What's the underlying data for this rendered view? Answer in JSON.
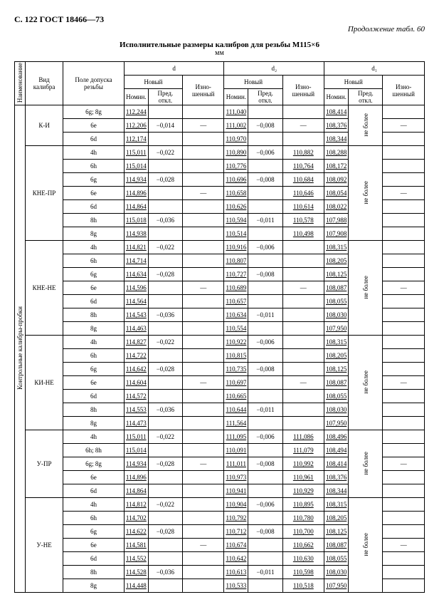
{
  "page_header": "С. 122 ГОСТ 18466—73",
  "continuation": "Продолжение табл. 60",
  "title": "Исполнительные размеры калибров для резьбы М115×6",
  "unit": "мм",
  "headers": {
    "naim": "Наименование",
    "vid": "Вид калибра",
    "pole": "Поле допуска резьбы",
    "d": "d",
    "d2": "d₂",
    "d1": "d₁",
    "novyj": "Новый",
    "izno": "Изно-шенный",
    "nomin": "Номин.",
    "pred": "Пред. откл."
  },
  "side_label": "Контрольные калибры-пробки",
  "ne_bolee": "не более",
  "groups": [
    {
      "vid": "К-И",
      "rows": [
        {
          "pole": "6g; 8g",
          "d_n": "112,244",
          "d_p": "",
          "d_i": "",
          "d2_n": "111,040",
          "d2_p": "",
          "d2_i": "",
          "d1_n": "108,414",
          "d1_p": "",
          "d1_i": ""
        },
        {
          "pole": "6e",
          "d_n": "112,206",
          "d_p": "−0,014",
          "d_i": "—",
          "d2_n": "111,002",
          "d2_p": "−0,008",
          "d2_i": "—",
          "d1_n": "108,376",
          "d1_p": "—",
          "d1_i": "—"
        },
        {
          "pole": "6d",
          "d_n": "112,174",
          "d_p": "",
          "d_i": "",
          "d2_n": "110,970",
          "d2_p": "",
          "d2_i": "",
          "d1_n": "108,344",
          "d1_p": "",
          "d1_i": ""
        }
      ]
    },
    {
      "vid": "КНЕ-ПР",
      "rows": [
        {
          "pole": "4h",
          "d_n": "115,011",
          "d_p": "−0,022",
          "d_i": "",
          "d2_n": "110,890",
          "d2_p": "−0,006",
          "d2_i": "110,882",
          "d1_n": "108,288",
          "d1_p": "",
          "d1_i": ""
        },
        {
          "pole": "6h",
          "d_n": "115,014",
          "d_p": "",
          "d_i": "",
          "d2_n": "110,776",
          "d2_p": "",
          "d2_i": "110,764",
          "d1_n": "108,172",
          "d1_p": "",
          "d1_i": ""
        },
        {
          "pole": "6g",
          "d_n": "114,934",
          "d_p": "−0,028",
          "d_i": "",
          "d2_n": "110,696",
          "d2_p": "−0,008",
          "d2_i": "110,684",
          "d1_n": "108,092",
          "d1_p": "",
          "d1_i": ""
        },
        {
          "pole": "6e",
          "d_n": "114,896",
          "d_p": "",
          "d_i": "—",
          "d2_n": "110,658",
          "d2_p": "",
          "d2_i": "110,646",
          "d1_n": "108,054",
          "d1_p": "—",
          "d1_i": "—"
        },
        {
          "pole": "6d",
          "d_n": "114,864",
          "d_p": "",
          "d_i": "",
          "d2_n": "110,626",
          "d2_p": "",
          "d2_i": "110,614",
          "d1_n": "108,022",
          "d1_p": "",
          "d1_i": ""
        },
        {
          "pole": "8h",
          "d_n": "115,018",
          "d_p": "−0,036",
          "d_i": "",
          "d2_n": "110,594",
          "d2_p": "−0,011",
          "d2_i": "110,578",
          "d1_n": "107,988",
          "d1_p": "",
          "d1_i": ""
        },
        {
          "pole": "8g",
          "d_n": "114,938",
          "d_p": "",
          "d_i": "",
          "d2_n": "110,514",
          "d2_p": "",
          "d2_i": "110,498",
          "d1_n": "107,908",
          "d1_p": "",
          "d1_i": ""
        }
      ]
    },
    {
      "vid": "КНЕ-НЕ",
      "rows": [
        {
          "pole": "4h",
          "d_n": "114,821",
          "d_p": "−0,022",
          "d_i": "",
          "d2_n": "110,916",
          "d2_p": "−0,006",
          "d2_i": "",
          "d1_n": "108,315",
          "d1_p": "",
          "d1_i": ""
        },
        {
          "pole": "6h",
          "d_n": "114,714",
          "d_p": "",
          "d_i": "",
          "d2_n": "110,807",
          "d2_p": "",
          "d2_i": "",
          "d1_n": "108,205",
          "d1_p": "",
          "d1_i": ""
        },
        {
          "pole": "6g",
          "d_n": "114,634",
          "d_p": "−0,028",
          "d_i": "",
          "d2_n": "110,727",
          "d2_p": "−0,008",
          "d2_i": "",
          "d1_n": "108,125",
          "d1_p": "",
          "d1_i": ""
        },
        {
          "pole": "6e",
          "d_n": "114,596",
          "d_p": "",
          "d_i": "—",
          "d2_n": "110,689",
          "d2_p": "",
          "d2_i": "—",
          "d1_n": "108,087",
          "d1_p": "—",
          "d1_i": "—"
        },
        {
          "pole": "6d",
          "d_n": "114,564",
          "d_p": "",
          "d_i": "",
          "d2_n": "110,657",
          "d2_p": "",
          "d2_i": "",
          "d1_n": "108,055",
          "d1_p": "",
          "d1_i": ""
        },
        {
          "pole": "8h",
          "d_n": "114,543",
          "d_p": "−0,036",
          "d_i": "",
          "d2_n": "110,634",
          "d2_p": "−0,011",
          "d2_i": "",
          "d1_n": "108,030",
          "d1_p": "",
          "d1_i": ""
        },
        {
          "pole": "8g",
          "d_n": "114,463",
          "d_p": "",
          "d_i": "",
          "d2_n": "110,554",
          "d2_p": "",
          "d2_i": "",
          "d1_n": "107,950",
          "d1_p": "",
          "d1_i": ""
        }
      ]
    },
    {
      "vid": "КИ-НЕ",
      "rows": [
        {
          "pole": "4h",
          "d_n": "114,827",
          "d_p": "−0,022",
          "d_i": "",
          "d2_n": "110,922",
          "d2_p": "−0,006",
          "d2_i": "",
          "d1_n": "108,315",
          "d1_p": "",
          "d1_i": ""
        },
        {
          "pole": "6h",
          "d_n": "114,722",
          "d_p": "",
          "d_i": "",
          "d2_n": "110,815",
          "d2_p": "",
          "d2_i": "",
          "d1_n": "108,205",
          "d1_p": "",
          "d1_i": ""
        },
        {
          "pole": "6g",
          "d_n": "114,642",
          "d_p": "−0,028",
          "d_i": "",
          "d2_n": "110,735",
          "d2_p": "−0,008",
          "d2_i": "",
          "d1_n": "108,125",
          "d1_p": "",
          "d1_i": ""
        },
        {
          "pole": "6e",
          "d_n": "114,604",
          "d_p": "",
          "d_i": "—",
          "d2_n": "110,697",
          "d2_p": "",
          "d2_i": "—",
          "d1_n": "108,087",
          "d1_p": "—",
          "d1_i": "—"
        },
        {
          "pole": "6d",
          "d_n": "114,572",
          "d_p": "",
          "d_i": "",
          "d2_n": "110,665",
          "d2_p": "",
          "d2_i": "",
          "d1_n": "108,055",
          "d1_p": "",
          "d1_i": ""
        },
        {
          "pole": "8h",
          "d_n": "114,553",
          "d_p": "−0,036",
          "d_i": "",
          "d2_n": "110,644",
          "d2_p": "−0,011",
          "d2_i": "",
          "d1_n": "108,030",
          "d1_p": "",
          "d1_i": ""
        },
        {
          "pole": "8g",
          "d_n": "114,473",
          "d_p": "",
          "d_i": "",
          "d2_n": "111,564",
          "d2_p": "",
          "d2_i": "",
          "d1_n": "107,950",
          "d1_p": "",
          "d1_i": ""
        }
      ]
    },
    {
      "vid": "У-ПР",
      "rows": [
        {
          "pole": "4h",
          "d_n": "115,011",
          "d_p": "−0,022",
          "d_i": "",
          "d2_n": "111,095",
          "d2_p": "−0,006",
          "d2_i": "111,086",
          "d1_n": "108,496",
          "d1_p": "",
          "d1_i": ""
        },
        {
          "pole": "6h; 8h",
          "d_n": "115,014",
          "d_p": "",
          "d_i": "",
          "d2_n": "110,091",
          "d2_p": "",
          "d2_i": "111,079",
          "d1_n": "108,494",
          "d1_p": "",
          "d1_i": ""
        },
        {
          "pole": "6g; 8g",
          "d_n": "114,934",
          "d_p": "−0,028",
          "d_i": "—",
          "d2_n": "111,011",
          "d2_p": "−0,008",
          "d2_i": "110,992",
          "d1_n": "108,414",
          "d1_p": "—",
          "d1_i": "—"
        },
        {
          "pole": "6e",
          "d_n": "114,896",
          "d_p": "",
          "d_i": "",
          "d2_n": "110,973",
          "d2_p": "",
          "d2_i": "110,961",
          "d1_n": "108,376",
          "d1_p": "",
          "d1_i": ""
        },
        {
          "pole": "6d",
          "d_n": "114,864",
          "d_p": "",
          "d_i": "",
          "d2_n": "110,941",
          "d2_p": "",
          "d2_i": "110,929",
          "d1_n": "108,344",
          "d1_p": "",
          "d1_i": ""
        }
      ]
    },
    {
      "vid": "У-НЕ",
      "rows": [
        {
          "pole": "4h",
          "d_n": "114,812",
          "d_p": "−0,022",
          "d_i": "",
          "d2_n": "110,904",
          "d2_p": "−0,006",
          "d2_i": "110,895",
          "d1_n": "108,315",
          "d1_p": "",
          "d1_i": ""
        },
        {
          "pole": "6h",
          "d_n": "114,702",
          "d_p": "",
          "d_i": "",
          "d2_n": "110,792",
          "d2_p": "",
          "d2_i": "110,780",
          "d1_n": "108,205",
          "d1_p": "",
          "d1_i": ""
        },
        {
          "pole": "6g",
          "d_n": "114,622",
          "d_p": "−0,028",
          "d_i": "",
          "d2_n": "110,712",
          "d2_p": "−0,008",
          "d2_i": "110,700",
          "d1_n": "108,125",
          "d1_p": "",
          "d1_i": ""
        },
        {
          "pole": "6e",
          "d_n": "114,581",
          "d_p": "",
          "d_i": "—",
          "d2_n": "110,674",
          "d2_p": "",
          "d2_i": "110,662",
          "d1_n": "108,087",
          "d1_p": "—",
          "d1_i": "—"
        },
        {
          "pole": "6d",
          "d_n": "114,552",
          "d_p": "",
          "d_i": "",
          "d2_n": "110,642",
          "d2_p": "",
          "d2_i": "110,630",
          "d1_n": "108,055",
          "d1_p": "",
          "d1_i": ""
        },
        {
          "pole": "8h",
          "d_n": "114,528",
          "d_p": "−0,036",
          "d_i": "",
          "d2_n": "110,613",
          "d2_p": "−0,011",
          "d2_i": "110,598",
          "d1_n": "108,030",
          "d1_p": "",
          "d1_i": ""
        },
        {
          "pole": "8g",
          "d_n": "114,448",
          "d_p": "",
          "d_i": "",
          "d2_n": "110,533",
          "d2_p": "",
          "d2_i": "110,518",
          "d1_n": "107,950",
          "d1_p": "",
          "d1_i": ""
        }
      ]
    }
  ]
}
